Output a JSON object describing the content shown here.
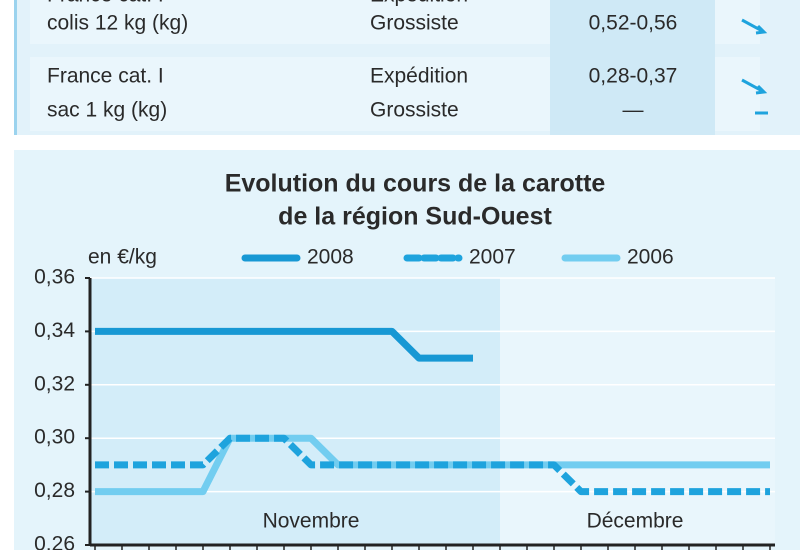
{
  "table": {
    "rows": [
      {
        "product": [
          "France cat. I",
          "colis 12 kg (kg)"
        ],
        "stage": [
          "Expédition",
          "Grossiste"
        ],
        "price": [
          "0,52-0,56"
        ]
      },
      {
        "product": [
          "France cat. I",
          "sac 1 kg (kg)"
        ],
        "stage": [
          "Expédition",
          "Grossiste"
        ],
        "price": [
          "0,28-0,37",
          "—"
        ]
      }
    ]
  },
  "chart_data": {
    "type": "line",
    "title": [
      "Evolution du cours de la carotte",
      "de la région Sud-Ouest"
    ],
    "y_label": "en €/kg",
    "categories": [
      null,
      null,
      null,
      null,
      null,
      null,
      null,
      null,
      "Novembre",
      null,
      null,
      null,
      null,
      null,
      null,
      null,
      null,
      null,
      null,
      null,
      "Décembre",
      null,
      null,
      null,
      null,
      null
    ],
    "series": [
      {
        "name": "2008",
        "color": "#1798d4",
        "dashed": false,
        "values": [
          0.34,
          0.34,
          0.34,
          0.34,
          0.34,
          0.34,
          0.34,
          0.34,
          0.34,
          0.34,
          0.34,
          0.34,
          0.33,
          0.33,
          0.33,
          null,
          null,
          null,
          null,
          null,
          null,
          null,
          null,
          null,
          null,
          null
        ]
      },
      {
        "name": "2007",
        "color": "#1ea3dd",
        "dashed": true,
        "values": [
          0.29,
          0.29,
          0.29,
          0.29,
          0.29,
          0.3,
          0.3,
          0.3,
          0.29,
          0.29,
          0.29,
          0.29,
          0.29,
          0.29,
          0.29,
          0.29,
          0.29,
          0.29,
          0.28,
          0.28,
          0.28,
          0.28,
          0.28,
          0.28,
          0.28,
          0.28
        ]
      },
      {
        "name": "2006",
        "color": "#72cdf0",
        "dashed": false,
        "values": [
          0.28,
          0.28,
          0.28,
          0.28,
          0.28,
          0.3,
          0.3,
          0.3,
          0.3,
          0.29,
          0.29,
          0.29,
          0.29,
          0.29,
          0.29,
          0.29,
          0.29,
          0.29,
          0.29,
          0.29,
          0.29,
          0.29,
          0.29,
          0.29,
          0.29,
          0.29
        ]
      }
    ],
    "ylim": [
      0.26,
      0.36
    ],
    "yticks": [
      {
        "value": 0.26,
        "label": "0,26"
      },
      {
        "value": 0.28,
        "label": "0,28"
      },
      {
        "value": 0.3,
        "label": "0,30"
      },
      {
        "value": 0.32,
        "label": "0,32"
      },
      {
        "value": 0.34,
        "label": "0,34"
      },
      {
        "value": 0.36,
        "label": "0,36"
      }
    ],
    "grid": true
  }
}
